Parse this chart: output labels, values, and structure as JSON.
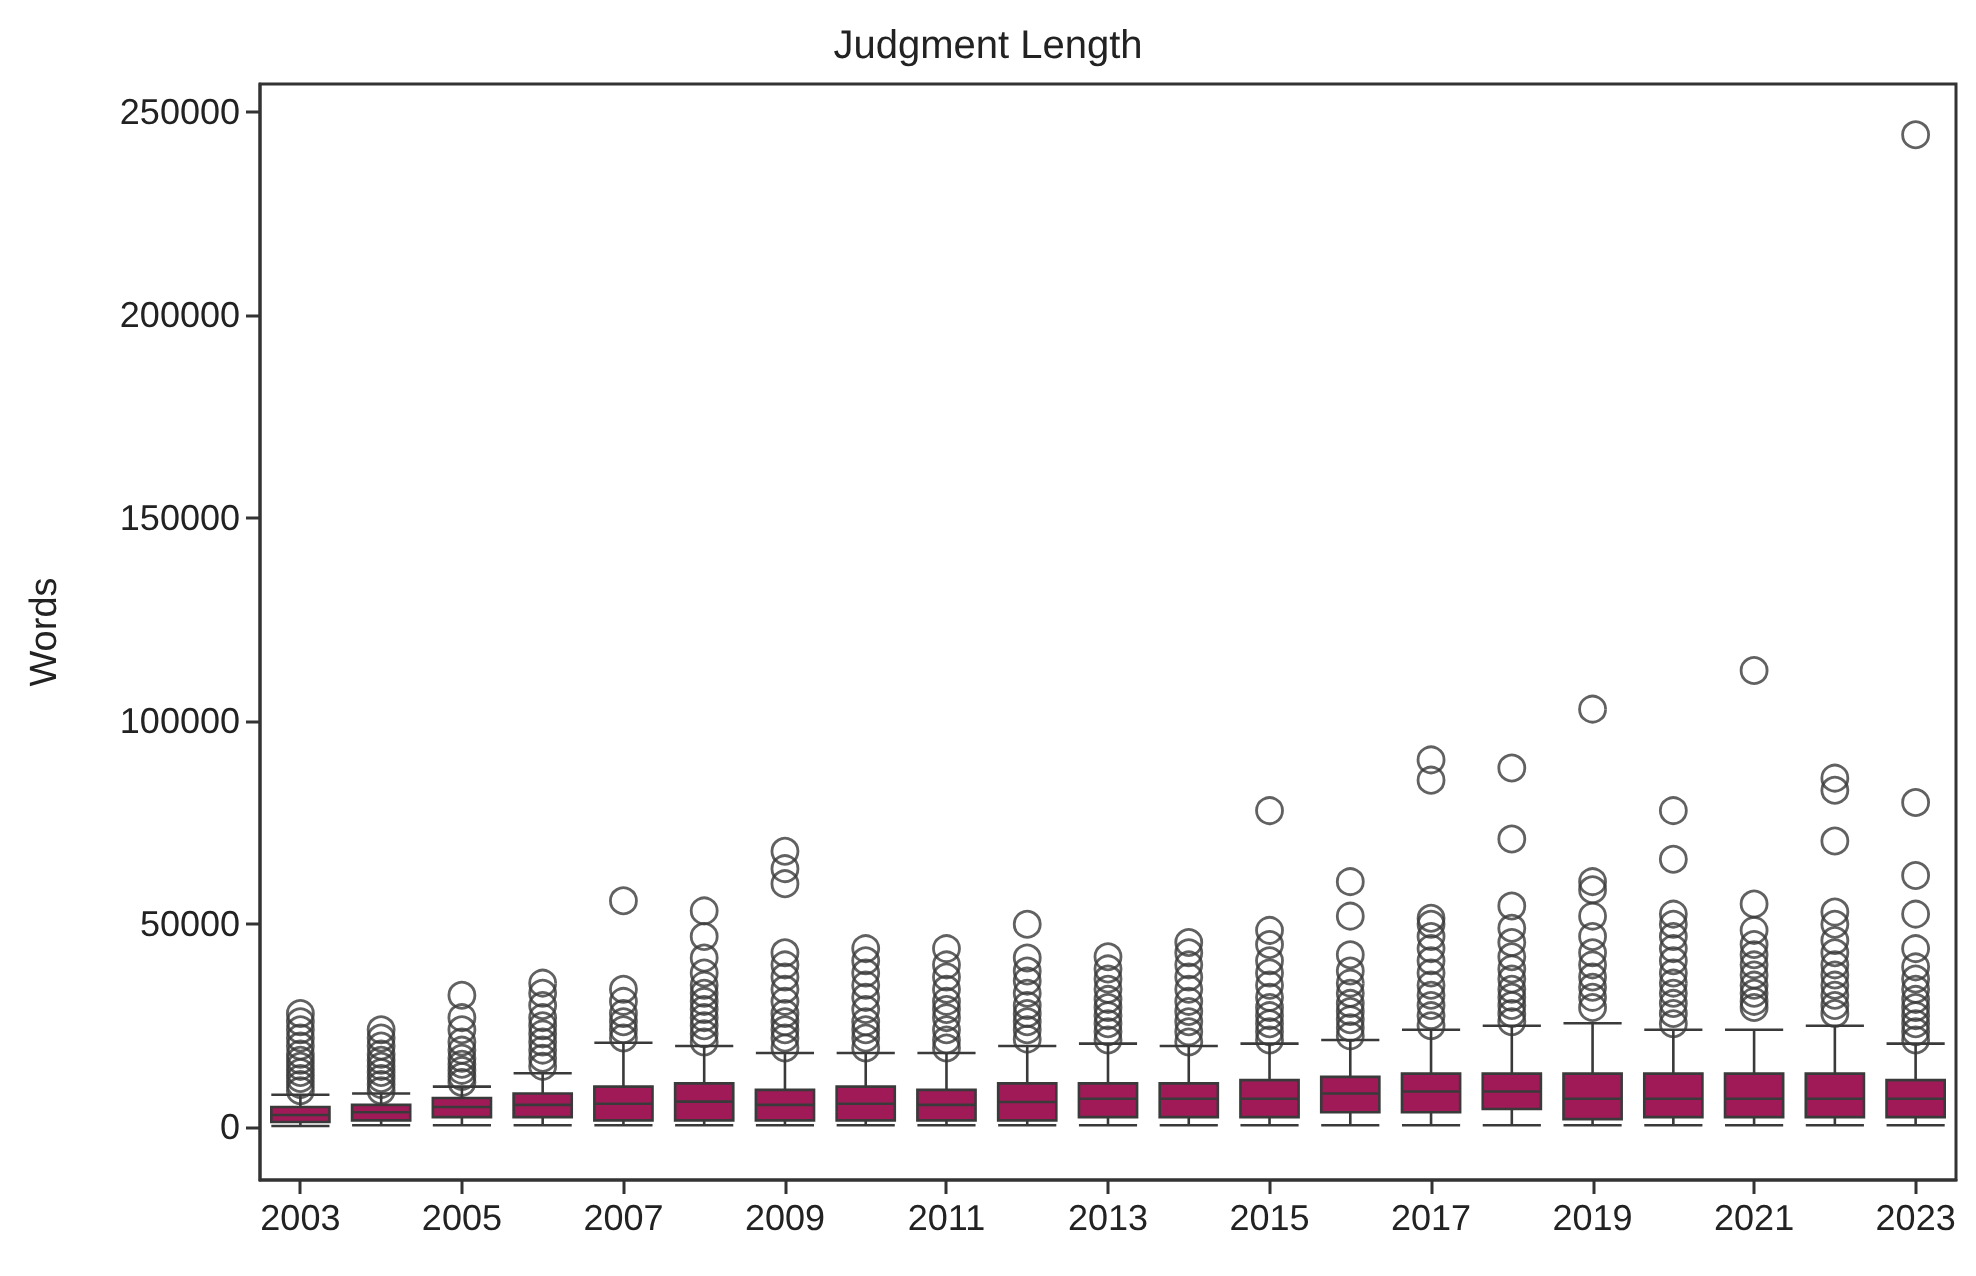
{
  "chart_data": {
    "type": "box",
    "title": "Judgment Length",
    "ylabel": "Words",
    "categories": [
      "2003",
      null,
      "2005",
      null,
      "2007",
      null,
      "2009",
      null,
      "2011",
      null,
      "2013",
      null,
      "2015",
      null,
      "2017",
      null,
      "2019",
      null,
      "2021",
      null,
      "2023"
    ],
    "color": "#a01a58",
    "ylim": [
      -13000,
      257000
    ],
    "yticks": [
      0,
      50000,
      100000,
      150000,
      200000,
      250000
    ],
    "grid": false,
    "boxes": [
      {
        "low": 300,
        "q1": 1300,
        "median": 3000,
        "q3": 5000,
        "high": 8000,
        "outliers": [
          9000,
          10500,
          12000,
          13500,
          15000,
          16500,
          18000,
          20000,
          22000,
          24000,
          26000,
          28000
        ]
      },
      {
        "low": 500,
        "q1": 1700,
        "median": 3700,
        "q3": 5500,
        "high": 8300,
        "outliers": [
          9000,
          10500,
          12000,
          13500,
          15000,
          16500,
          18000,
          20000,
          22000,
          24000
        ]
      },
      {
        "low": 500,
        "q1": 2500,
        "median": 5000,
        "q3": 7200,
        "high": 10000,
        "outliers": [
          11000,
          12500,
          14000,
          15500,
          17000,
          19000,
          21000,
          24000,
          27000,
          32500
        ]
      },
      {
        "low": 500,
        "q1": 2500,
        "median": 5500,
        "q3": 8300,
        "high": 13300,
        "outliers": [
          15000,
          17000,
          19000,
          21000,
          23000,
          25000,
          27000,
          30000,
          33000,
          35500
        ]
      },
      {
        "low": 500,
        "q1": 1700,
        "median": 5800,
        "q3": 10000,
        "high": 20800,
        "outliers": [
          22000,
          24000,
          26000,
          28000,
          31000,
          34000,
          55800
        ]
      },
      {
        "low": 500,
        "q1": 1700,
        "median": 6300,
        "q3": 10800,
        "high": 20000,
        "outliers": [
          21000,
          23000,
          25000,
          27000,
          29000,
          31000,
          33000,
          35000,
          38000,
          41700,
          47000,
          53300
        ]
      },
      {
        "low": 500,
        "q1": 1700,
        "median": 5500,
        "q3": 9200,
        "high": 18300,
        "outliers": [
          19500,
          22000,
          24000,
          26000,
          28000,
          31000,
          34000,
          37000,
          40000,
          43000,
          60000,
          63700,
          68000
        ]
      },
      {
        "low": 500,
        "q1": 1700,
        "median": 5800,
        "q3": 10000,
        "high": 18300,
        "outliers": [
          19500,
          22000,
          24000,
          26000,
          29000,
          32000,
          35000,
          38000,
          41000,
          44000
        ]
      },
      {
        "low": 500,
        "q1": 1700,
        "median": 5500,
        "q3": 9200,
        "high": 18300,
        "outliers": [
          19500,
          21500,
          24000,
          27000,
          29000,
          31000,
          34000,
          37000,
          40000,
          44000
        ]
      },
      {
        "low": 500,
        "q1": 1700,
        "median": 6200,
        "q3": 10800,
        "high": 20000,
        "outliers": [
          21700,
          24000,
          26000,
          28000,
          30000,
          33000,
          36000,
          38500,
          41700,
          50000
        ]
      },
      {
        "low": 500,
        "q1": 2500,
        "median": 7000,
        "q3": 10800,
        "high": 20600,
        "outliers": [
          21500,
          23500,
          25500,
          27500,
          29500,
          31500,
          34000,
          36500,
          39000,
          42000
        ]
      },
      {
        "low": 500,
        "q1": 2500,
        "median": 7000,
        "q3": 10800,
        "high": 20000,
        "outliers": [
          21000,
          23500,
          26000,
          28500,
          31000,
          34000,
          37000,
          40000,
          43000,
          45500
        ]
      },
      {
        "low": 500,
        "q1": 2500,
        "median": 7000,
        "q3": 11600,
        "high": 20600,
        "outliers": [
          21500,
          23500,
          25500,
          27500,
          29500,
          32000,
          35000,
          38000,
          41000,
          45000,
          48500,
          78000
        ]
      },
      {
        "low": 500,
        "q1": 3700,
        "median": 8300,
        "q3": 12400,
        "high": 21500,
        "outliers": [
          22500,
          24500,
          26500,
          28500,
          30500,
          33000,
          35500,
          38500,
          42500,
          52000,
          60500
        ]
      },
      {
        "low": 500,
        "q1": 3700,
        "median": 8800,
        "q3": 13200,
        "high": 24000,
        "outliers": [
          25000,
          27500,
          30000,
          32500,
          35000,
          38000,
          41000,
          44000,
          47000,
          50000,
          51500,
          85500,
          90500
        ]
      },
      {
        "low": 500,
        "q1": 4500,
        "median": 8800,
        "q3": 13200,
        "high": 25000,
        "outliers": [
          26000,
          28000,
          30000,
          32000,
          34000,
          36500,
          39000,
          42000,
          45500,
          49000,
          54500,
          71000,
          88500
        ]
      },
      {
        "low": 500,
        "q1": 2000,
        "median": 7000,
        "q3": 13200,
        "high": 25600,
        "outliers": [
          29500,
          32000,
          34500,
          37000,
          40000,
          43000,
          47000,
          52000,
          58500,
          60500,
          103000
        ]
      },
      {
        "low": 500,
        "q1": 2500,
        "median": 7000,
        "q3": 13200,
        "high": 24000,
        "outliers": [
          25500,
          28000,
          30500,
          33000,
          35500,
          38000,
          41000,
          44000,
          47000,
          50000,
          52500,
          66000,
          78000
        ]
      },
      {
        "low": 500,
        "q1": 2500,
        "median": 7000,
        "q3": 13200,
        "high": 24000,
        "outliers": [
          29500,
          31000,
          33000,
          35000,
          37500,
          40000,
          42500,
          45000,
          48500,
          55000,
          112500
        ]
      },
      {
        "low": 500,
        "q1": 2500,
        "median": 7000,
        "q3": 13200,
        "high": 25000,
        "outliers": [
          28000,
          30000,
          32500,
          35000,
          37500,
          40000,
          43000,
          46000,
          50000,
          53000,
          70500,
          83000,
          86000
        ]
      },
      {
        "low": 500,
        "q1": 2500,
        "median": 7000,
        "q3": 11600,
        "high": 20600,
        "outliers": [
          21500,
          23500,
          25500,
          27500,
          29500,
          31500,
          34000,
          36500,
          39500,
          44000,
          52500,
          62000,
          80000,
          244500
        ]
      }
    ]
  }
}
